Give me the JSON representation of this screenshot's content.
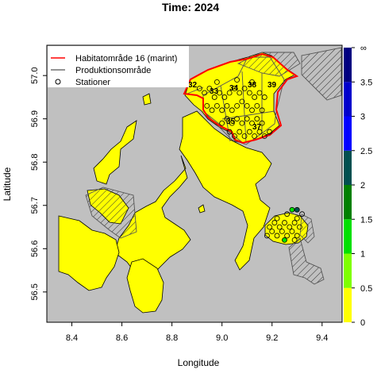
{
  "title": "Time: 2024",
  "xlabel": "Longitude",
  "ylabel": "Latitude",
  "xlim": [
    8.3,
    9.48
  ],
  "ylim": [
    56.43,
    57.07
  ],
  "x_ticks": [
    "8.4",
    "8.6",
    "8.8",
    "9.0",
    "9.2",
    "9.4"
  ],
  "x_tick_values": [
    8.4,
    8.6,
    8.8,
    9.0,
    9.2,
    9.4
  ],
  "y_ticks": [
    "56.5",
    "56.6",
    "56.7",
    "56.8",
    "56.9",
    "57.0"
  ],
  "y_tick_values": [
    56.5,
    56.6,
    56.7,
    56.8,
    56.9,
    57.0
  ],
  "legend": {
    "items": [
      {
        "label": "Habitatområde 16 (marint)",
        "symbol": "line",
        "color": "#ff0000"
      },
      {
        "label": "Produktionsområde",
        "symbol": "line",
        "color": "#555555"
      },
      {
        "label": "Stationer",
        "symbol": "circle",
        "color": "#000000"
      }
    ]
  },
  "colorbar": {
    "labels": [
      "0",
      "0.5",
      "1",
      "1.5",
      "2",
      "2.5",
      "3",
      "3.5",
      "∞"
    ],
    "values": [
      0,
      0.5,
      1,
      1.5,
      2,
      2.5,
      3,
      3.5,
      4
    ],
    "colors": [
      "#ffff00",
      "#7fff00",
      "#00e000",
      "#008000",
      "#005050",
      "#0000ff",
      "#0000cc",
      "#000080"
    ]
  },
  "colors": {
    "land": "#c0c0c0",
    "water": "#ffff00",
    "habitat": "#ff0000",
    "production": "#555555"
  },
  "production_areas": [
    {
      "label": "32"
    },
    {
      "label": "33"
    },
    {
      "label": "34"
    },
    {
      "label": "38"
    },
    {
      "label": "39"
    },
    {
      "label": "35"
    },
    {
      "label": "37"
    }
  ],
  "stations": [
    {
      "lon": 8.93,
      "lat": 56.96,
      "level": 0
    },
    {
      "lon": 8.95,
      "lat": 56.97,
      "level": 0
    },
    {
      "lon": 8.97,
      "lat": 56.95,
      "level": 0
    },
    {
      "lon": 8.99,
      "lat": 56.96,
      "level": 0
    },
    {
      "lon": 9.01,
      "lat": 56.95,
      "level": 0
    },
    {
      "lon": 9.03,
      "lat": 56.96,
      "level": 0
    },
    {
      "lon": 9.05,
      "lat": 56.97,
      "level": 0
    },
    {
      "lon": 9.07,
      "lat": 56.96,
      "level": 0
    },
    {
      "lon": 9.09,
      "lat": 56.97,
      "level": 0
    },
    {
      "lon": 9.11,
      "lat": 56.96,
      "level": 0
    },
    {
      "lon": 9.13,
      "lat": 56.95,
      "level": 0
    },
    {
      "lon": 9.15,
      "lat": 56.96,
      "level": 0
    },
    {
      "lon": 9.17,
      "lat": 56.95,
      "level": 0
    },
    {
      "lon": 8.94,
      "lat": 56.93,
      "level": 0
    },
    {
      "lon": 8.96,
      "lat": 56.92,
      "level": 0
    },
    {
      "lon": 8.98,
      "lat": 56.93,
      "level": 0
    },
    {
      "lon": 9.0,
      "lat": 56.92,
      "level": 0
    },
    {
      "lon": 9.02,
      "lat": 56.93,
      "level": 0
    },
    {
      "lon": 9.04,
      "lat": 56.92,
      "level": 0
    },
    {
      "lon": 9.06,
      "lat": 56.93,
      "level": 0
    },
    {
      "lon": 9.08,
      "lat": 56.94,
      "level": 0
    },
    {
      "lon": 9.1,
      "lat": 56.93,
      "level": 0
    },
    {
      "lon": 9.12,
      "lat": 56.92,
      "level": 0
    },
    {
      "lon": 9.14,
      "lat": 56.93,
      "level": 0
    },
    {
      "lon": 9.16,
      "lat": 56.92,
      "level": 0
    },
    {
      "lon": 9.0,
      "lat": 56.89,
      "level": 0
    },
    {
      "lon": 9.02,
      "lat": 56.9,
      "level": 0
    },
    {
      "lon": 9.04,
      "lat": 56.89,
      "level": 0
    },
    {
      "lon": 9.06,
      "lat": 56.9,
      "level": 0
    },
    {
      "lon": 9.08,
      "lat": 56.89,
      "level": 0
    },
    {
      "lon": 9.1,
      "lat": 56.9,
      "level": 0
    },
    {
      "lon": 9.12,
      "lat": 56.89,
      "level": 0
    },
    {
      "lon": 9.14,
      "lat": 56.9,
      "level": 0
    },
    {
      "lon": 9.16,
      "lat": 56.89,
      "level": 0
    },
    {
      "lon": 9.03,
      "lat": 56.87,
      "level": 0
    },
    {
      "lon": 9.05,
      "lat": 56.86,
      "level": 0
    },
    {
      "lon": 9.07,
      "lat": 56.87,
      "level": 0
    },
    {
      "lon": 9.09,
      "lat": 56.86,
      "level": 0
    },
    {
      "lon": 9.11,
      "lat": 56.87,
      "level": 0
    },
    {
      "lon": 9.13,
      "lat": 56.86,
      "level": 0
    },
    {
      "lon": 9.15,
      "lat": 56.87,
      "level": 0
    },
    {
      "lon": 9.17,
      "lat": 56.86,
      "level": 0
    },
    {
      "lon": 9.19,
      "lat": 56.87,
      "level": 0
    },
    {
      "lon": 8.91,
      "lat": 56.97,
      "level": 0
    },
    {
      "lon": 8.98,
      "lat": 56.985,
      "level": 0
    },
    {
      "lon": 9.06,
      "lat": 56.99,
      "level": 0
    },
    {
      "lon": 9.12,
      "lat": 56.985,
      "level": 0
    },
    {
      "lon": 9.18,
      "lat": 56.63,
      "level": 0
    },
    {
      "lon": 9.2,
      "lat": 56.64,
      "level": 0
    },
    {
      "lon": 9.22,
      "lat": 56.63,
      "level": 0
    },
    {
      "lon": 9.24,
      "lat": 56.64,
      "level": 0
    },
    {
      "lon": 9.26,
      "lat": 56.63,
      "level": 0
    },
    {
      "lon": 9.28,
      "lat": 56.64,
      "level": 0
    },
    {
      "lon": 9.3,
      "lat": 56.63,
      "level": 0
    },
    {
      "lon": 9.19,
      "lat": 56.65,
      "level": 0
    },
    {
      "lon": 9.21,
      "lat": 56.66,
      "level": 0
    },
    {
      "lon": 9.23,
      "lat": 56.65,
      "level": 0
    },
    {
      "lon": 9.25,
      "lat": 56.66,
      "level": 0
    },
    {
      "lon": 9.27,
      "lat": 56.65,
      "level": 0
    },
    {
      "lon": 9.29,
      "lat": 56.66,
      "level": 0
    },
    {
      "lon": 9.31,
      "lat": 56.65,
      "level": 0
    },
    {
      "lon": 9.22,
      "lat": 56.67,
      "level": 0
    },
    {
      "lon": 9.26,
      "lat": 56.68,
      "level": 0
    },
    {
      "lon": 9.3,
      "lat": 56.67,
      "level": 0
    },
    {
      "lon": 9.28,
      "lat": 56.69,
      "level": 1
    },
    {
      "lon": 9.3,
      "lat": 56.69,
      "level": 2
    },
    {
      "lon": 9.25,
      "lat": 56.62,
      "level": 1
    },
    {
      "lon": 9.29,
      "lat": 56.62,
      "level": 0
    },
    {
      "lon": 9.32,
      "lat": 56.68,
      "level": 0
    }
  ]
}
